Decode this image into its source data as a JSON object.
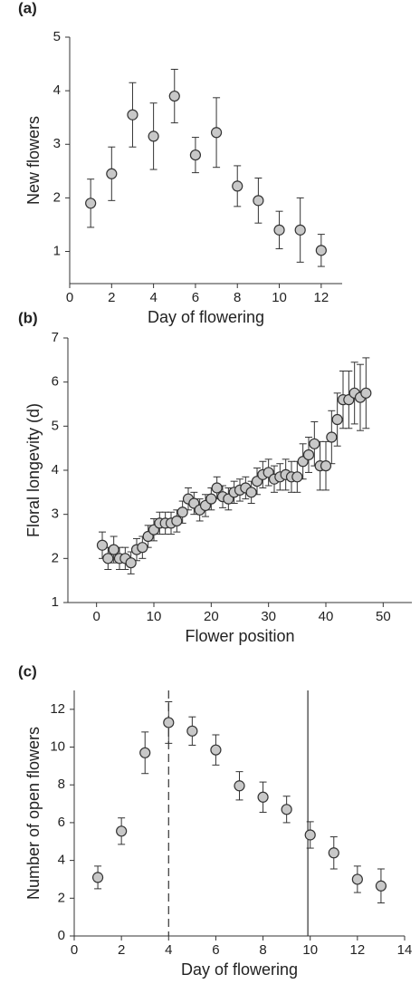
{
  "chart_data": [
    {
      "type": "scatter",
      "label": "(a)",
      "xlabel": "Day of flowering",
      "ylabel": "New flowers",
      "x": [
        1,
        2,
        3,
        4,
        5,
        6,
        7,
        8,
        9,
        10,
        11,
        12
      ],
      "values": [
        1.9,
        2.45,
        3.55,
        3.15,
        3.9,
        2.8,
        3.22,
        2.22,
        1.95,
        1.4,
        1.4,
        1.02
      ],
      "errors": [
        0.45,
        0.5,
        0.6,
        0.62,
        0.5,
        0.33,
        0.65,
        0.38,
        0.42,
        0.35,
        0.6,
        0.3
      ],
      "xlim": [
        0,
        13
      ],
      "ylim": [
        0.4,
        5
      ],
      "xticks": [
        0,
        2,
        4,
        6,
        8,
        10,
        12
      ],
      "yticks": [
        1,
        2,
        3,
        4,
        5
      ],
      "color": "#c8c8c8"
    },
    {
      "type": "scatter",
      "label": "(b)",
      "xlabel": "Flower position",
      "ylabel": "Floral longevity (d)",
      "x": [
        1,
        2,
        3,
        4,
        5,
        6,
        7,
        8,
        9,
        10,
        11,
        12,
        13,
        14,
        15,
        16,
        17,
        18,
        19,
        20,
        21,
        22,
        23,
        24,
        25,
        26,
        27,
        28,
        29,
        30,
        31,
        32,
        33,
        34,
        35,
        36,
        37,
        38,
        39,
        40,
        41,
        42,
        43,
        44,
        45,
        46,
        47
      ],
      "values": [
        2.3,
        2.0,
        2.2,
        2.0,
        2.0,
        1.9,
        2.2,
        2.25,
        2.5,
        2.65,
        2.8,
        2.8,
        2.8,
        2.85,
        3.05,
        3.35,
        3.25,
        3.1,
        3.2,
        3.35,
        3.6,
        3.4,
        3.35,
        3.5,
        3.55,
        3.6,
        3.5,
        3.75,
        3.9,
        3.95,
        3.8,
        3.85,
        3.9,
        3.85,
        3.85,
        4.2,
        4.35,
        4.6,
        4.1,
        4.1,
        4.75,
        5.15,
        5.6,
        5.6,
        5.75,
        5.65,
        5.75
      ],
      "errors": [
        0.3,
        0.25,
        0.3,
        0.25,
        0.25,
        0.25,
        0.25,
        0.25,
        0.25,
        0.25,
        0.25,
        0.25,
        0.25,
        0.25,
        0.25,
        0.25,
        0.25,
        0.25,
        0.25,
        0.25,
        0.25,
        0.25,
        0.25,
        0.25,
        0.25,
        0.25,
        0.25,
        0.3,
        0.3,
        0.3,
        0.3,
        0.3,
        0.35,
        0.35,
        0.35,
        0.4,
        0.4,
        0.5,
        0.55,
        0.55,
        0.6,
        0.6,
        0.65,
        0.65,
        0.7,
        0.75,
        0.8
      ],
      "xlim": [
        -5,
        55
      ],
      "ylim": [
        1,
        7
      ],
      "xticks": [
        0,
        10,
        20,
        30,
        40,
        50
      ],
      "yticks": [
        1,
        2,
        3,
        4,
        5,
        6,
        7
      ],
      "color": "#c8c8c8"
    },
    {
      "type": "scatter",
      "label": "(c)",
      "xlabel": "Day of flowering",
      "ylabel": "Number of open flowers",
      "x": [
        1,
        2,
        3,
        4,
        5,
        6,
        7,
        8,
        9,
        10,
        11,
        12,
        13
      ],
      "values": [
        3.1,
        5.55,
        9.7,
        11.3,
        10.85,
        9.85,
        7.95,
        7.35,
        6.7,
        5.35,
        4.4,
        3.0,
        2.65
      ],
      "errors": [
        0.6,
        0.7,
        1.1,
        1.1,
        0.75,
        0.8,
        0.75,
        0.8,
        0.7,
        0.7,
        0.85,
        0.7,
        0.9
      ],
      "xlim": [
        0,
        14
      ],
      "ylim": [
        0,
        13
      ],
      "xticks": [
        0,
        2,
        4,
        6,
        8,
        10,
        12,
        14
      ],
      "yticks": [
        0,
        2,
        4,
        6,
        8,
        10,
        12
      ],
      "color": "#c8c8c8",
      "vlines": [
        {
          "x": 4,
          "style": "dashed"
        },
        {
          "x": 9.9,
          "style": "solid"
        }
      ]
    }
  ]
}
